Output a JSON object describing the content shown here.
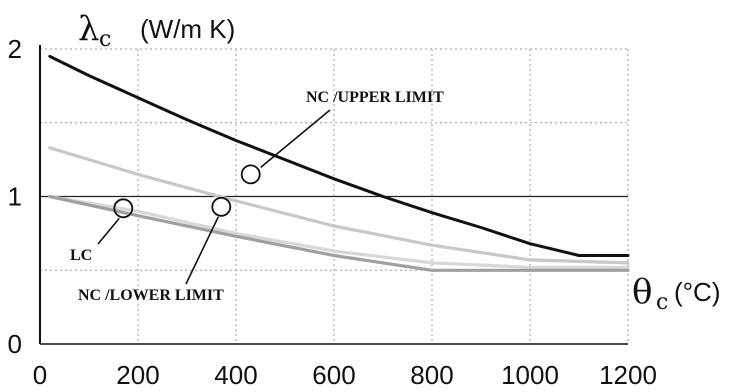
{
  "chart_data": {
    "type": "line",
    "title": "",
    "ylabel": {
      "symbol": "λ",
      "subscript": "c",
      "unit": "(W/m K)"
    },
    "xlabel": {
      "symbol": "θ",
      "subscript": "c",
      "unit": "(°C)"
    },
    "xlim": [
      0,
      1200
    ],
    "ylim": [
      0,
      2
    ],
    "x_ticks": [
      "0",
      "200",
      "400",
      "600",
      "800",
      "1000",
      "1200"
    ],
    "y_ticks": [
      "0",
      "1",
      "2"
    ],
    "grid": true,
    "reference_line": {
      "y": 1
    },
    "series": [
      {
        "color": "#111111",
        "x": [
          20,
          100,
          200,
          300,
          400,
          500,
          600,
          700,
          800,
          900,
          1000,
          1100,
          1200
        ],
        "y": [
          1.95,
          1.82,
          1.67,
          1.52,
          1.38,
          1.25,
          1.12,
          1.0,
          0.89,
          0.79,
          0.68,
          0.6,
          0.6
        ]
      },
      {
        "color": "#c8c8c8",
        "x": [
          20,
          200,
          400,
          600,
          800,
          1000,
          1200
        ],
        "y": [
          1.33,
          1.15,
          0.97,
          0.8,
          0.67,
          0.57,
          0.55
        ]
      },
      {
        "color": "#d8d8d8",
        "x": [
          20,
          200,
          400,
          600,
          800,
          1000,
          1200
        ],
        "y": [
          1.0,
          0.9,
          0.75,
          0.63,
          0.55,
          0.52,
          0.52
        ]
      },
      {
        "color": "#a0a0a0",
        "x": [
          20,
          200,
          400,
          600,
          800,
          1000,
          1200
        ],
        "y": [
          1.0,
          0.87,
          0.73,
          0.6,
          0.5,
          0.5,
          0.5
        ]
      }
    ],
    "annotations": [
      {
        "text": "NC /UPPER LIMIT",
        "marker": {
          "x": 430,
          "y": 1.15
        }
      },
      {
        "text": "LC",
        "marker": {
          "x": 170,
          "y": 0.92
        }
      },
      {
        "text": "NC /LOWER LIMIT",
        "marker": {
          "x": 370,
          "y": 0.93
        }
      }
    ]
  }
}
